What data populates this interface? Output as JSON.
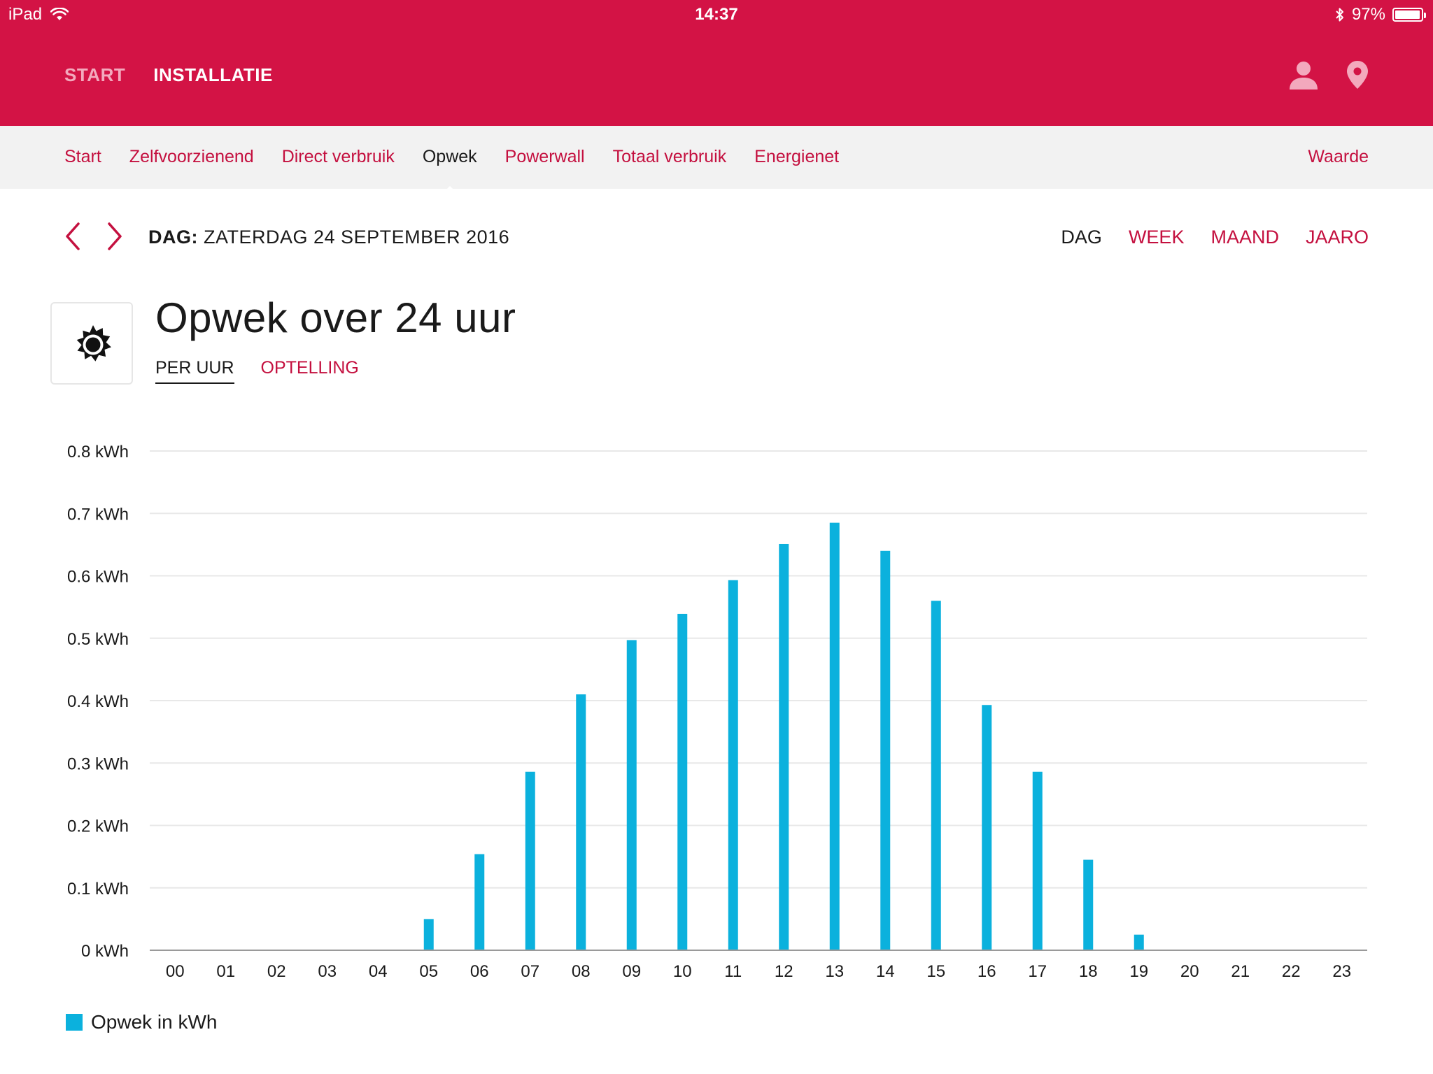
{
  "status_bar": {
    "device": "iPad",
    "time": "14:37",
    "battery": "97%"
  },
  "header": {
    "nav": [
      {
        "label": "START",
        "active": false
      },
      {
        "label": "INSTALLATIE",
        "active": true
      }
    ],
    "icons": [
      "user-icon",
      "location-pin-icon"
    ]
  },
  "subnav": {
    "items": [
      "Start",
      "Zelfvoorzienend",
      "Direct verbruik",
      "Opwek",
      "Powerwall",
      "Totaal verbruik",
      "Energienet"
    ],
    "selected": "Opwek",
    "right_label": "Waarde"
  },
  "date_row": {
    "prefix": "DAG:",
    "date": "ZATERDAG 24 SEPTEMBER 2016",
    "periods": [
      "DAG",
      "WEEK",
      "MAAND",
      "JAARO"
    ],
    "selected_period": "DAG"
  },
  "section": {
    "title": "Opwek over 24 uur",
    "icon": "sun-icon",
    "modes": [
      "PER UUR",
      "OPTELLING"
    ],
    "selected_mode": "PER UUR"
  },
  "colors": {
    "brand": "#d31345",
    "accent_text": "#c4103f",
    "bar": "#0bb1dd"
  },
  "chart_data": {
    "type": "bar",
    "categories": [
      "00",
      "01",
      "02",
      "03",
      "04",
      "05",
      "06",
      "07",
      "08",
      "09",
      "10",
      "11",
      "12",
      "13",
      "14",
      "15",
      "16",
      "17",
      "18",
      "19",
      "20",
      "21",
      "22",
      "23"
    ],
    "series": [
      {
        "name": "Opwek in kWh",
        "values": [
          0,
          0,
          0,
          0,
          0,
          0.05,
          0.154,
          0.286,
          0.41,
          0.497,
          0.539,
          0.593,
          0.651,
          0.685,
          0.64,
          0.56,
          0.393,
          0.286,
          0.145,
          0.025,
          0,
          0,
          0,
          0
        ]
      }
    ],
    "yticks": [
      "0 kWh",
      "0.1 kWh",
      "0.2 kWh",
      "0.3 kWh",
      "0.4 kWh",
      "0.5 kWh",
      "0.6 kWh",
      "0.7 kWh",
      "0.8 kWh"
    ],
    "ylim": [
      0,
      0.8
    ],
    "unit": "kWh",
    "grid": true,
    "legend_position": "bottom-left"
  }
}
